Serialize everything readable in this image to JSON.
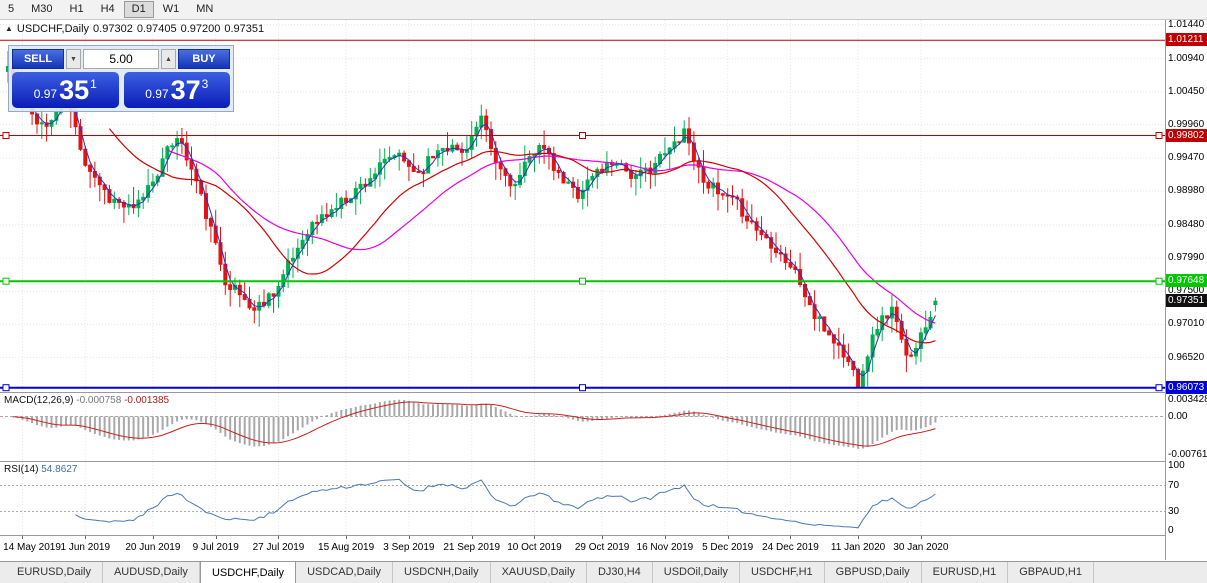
{
  "palette": {
    "up": "#00B050",
    "down": "#E01414",
    "ma_fast": "#2E2EC8",
    "ma_mid": "#D40000",
    "ma_slow": "#E800E8",
    "macd_hist": "#A8A8A8",
    "macd_signal": "#CC2020",
    "rsi_line": "#4A78B4",
    "grid": "#E6E6E6",
    "level_dash": "#AAAAAA"
  },
  "toolbar": {
    "timeframes": [
      {
        "label": "5",
        "active": false
      },
      {
        "label": "M30",
        "active": false
      },
      {
        "label": "H1",
        "active": false
      },
      {
        "label": "H4",
        "active": false
      },
      {
        "label": "D1",
        "active": true
      },
      {
        "label": "W1",
        "active": false
      },
      {
        "label": "MN",
        "active": false
      }
    ]
  },
  "chart": {
    "marker_icon": "▲",
    "symbol": "USDCHF,Daily",
    "open": "0.97302",
    "high": "0.97405",
    "low": "0.97200",
    "close": "0.97351",
    "price_top": 1.0151,
    "price_bottom": 0.9601,
    "y_ticks": [
      "1.01440",
      "1.00940",
      "1.00450",
      "0.99960",
      "0.99470",
      "0.98980",
      "0.98480",
      "0.97990",
      "0.97500",
      "0.97010",
      "0.96520"
    ],
    "hlines": [
      {
        "price": 1.01211,
        "label": "1.01211",
        "color": "#C00000",
        "width": 1,
        "handles": false
      },
      {
        "price": 0.99802,
        "label": "0.99802",
        "color": "#C00000",
        "width": 1,
        "handles": true
      },
      {
        "price": 0.97648,
        "label": "0.97648",
        "color": "#00C800",
        "width": 2,
        "handles": true
      },
      {
        "price": 0.96073,
        "label": "0.96073",
        "color": "#0000D8",
        "width": 2,
        "handles": true
      }
    ],
    "bid": {
      "price": 0.97351,
      "label": "0.97351",
      "bg": "#101010"
    },
    "trade_panel": {
      "sell_label": "SELL",
      "buy_label": "BUY",
      "volume": "5.00",
      "dropdown_icon": "▼",
      "spin_up_icon": "▲",
      "sell_price_prefix": "0.97",
      "sell_price_big": "35",
      "sell_price_sup": "1",
      "buy_price_prefix": "0.97",
      "buy_price_big": "37",
      "buy_price_sup": "3"
    }
  },
  "macd": {
    "name": "MACD(12,26,9)",
    "value1": "-0.000758",
    "value2": "-0.001385",
    "scale_top": "0.003428",
    "scale_zero": "0.00",
    "scale_bottom": "-0.00761",
    "vmax": 0.0045,
    "vmin": -0.0085
  },
  "rsi": {
    "name": "RSI(14)",
    "value": "54.8627",
    "scale": [
      "100",
      "70",
      "30",
      "0"
    ],
    "level_lines": [
      70,
      30
    ]
  },
  "date_axis": {
    "ticks": [
      {
        "label": "14 May 2019",
        "i": 3
      },
      {
        "label": "1 Jun 2019",
        "i": 16
      },
      {
        "label": "20 Jun 2019",
        "i": 30
      },
      {
        "label": "9 Jul 2019",
        "i": 43
      },
      {
        "label": "27 Jul 2019",
        "i": 56
      },
      {
        "label": "15 Aug 2019",
        "i": 70
      },
      {
        "label": "3 Sep 2019",
        "i": 83
      },
      {
        "label": "21 Sep 2019",
        "i": 96
      },
      {
        "label": "10 Oct 2019",
        "i": 109
      },
      {
        "label": "29 Oct 2019",
        "i": 123
      },
      {
        "label": "16 Nov 2019",
        "i": 136
      },
      {
        "label": "5 Dec 2019",
        "i": 149
      },
      {
        "label": "24 Dec 2019",
        "i": 162
      },
      {
        "label": "11 Jan 2020",
        "i": 176
      },
      {
        "label": "30 Jan 2020",
        "i": 189
      }
    ]
  },
  "tabs": {
    "active_index": 2,
    "items": [
      "EURUSD,Daily",
      "AUDUSD,Daily",
      "USDCHF,Daily",
      "USDCAD,Daily",
      "USDCNH,Daily",
      "XAUUSD,Daily",
      "DJ30,H4",
      "USDOil,Daily",
      "USDCHF,H1",
      "GBPUSD,Daily",
      "EURUSD,H1",
      "GBPAUD,H1"
    ]
  },
  "chart_data": {
    "type": "candlestick",
    "symbol": "USDCHF",
    "timeframe": "Daily",
    "count": 193,
    "seed": 11,
    "noise": 0.0018,
    "wick": 0.0026,
    "clamp_low": 0.9606,
    "clamp_high": 1.0139,
    "last_close": 0.97351,
    "ohlc_current": {
      "open": 0.97302,
      "high": 0.97405,
      "low": 0.972,
      "close": 0.97351
    },
    "anchors": [
      [
        0,
        1.0082
      ],
      [
        4,
        1.0018
      ],
      [
        8,
        0.9992
      ],
      [
        12,
        1.0038
      ],
      [
        16,
        0.9942
      ],
      [
        21,
        0.9888
      ],
      [
        26,
        0.9868
      ],
      [
        31,
        0.9928
      ],
      [
        35,
        0.9982
      ],
      [
        39,
        0.9912
      ],
      [
        45,
        0.9768
      ],
      [
        51,
        0.9722
      ],
      [
        56,
        0.9758
      ],
      [
        62,
        0.9842
      ],
      [
        68,
        0.9875
      ],
      [
        74,
        0.9912
      ],
      [
        80,
        0.9952
      ],
      [
        85,
        0.9925
      ],
      [
        90,
        0.9968
      ],
      [
        94,
        0.9955
      ],
      [
        98,
        1.0002
      ],
      [
        101,
        0.9938
      ],
      [
        105,
        0.9905
      ],
      [
        110,
        0.9972
      ],
      [
        114,
        0.9918
      ],
      [
        118,
        0.9895
      ],
      [
        122,
        0.9928
      ],
      [
        126,
        0.9945
      ],
      [
        130,
        0.9915
      ],
      [
        134,
        0.994
      ],
      [
        137,
        0.9958
      ],
      [
        140,
        0.999
      ],
      [
        143,
        0.9928
      ],
      [
        147,
        0.9892
      ],
      [
        151,
        0.9878
      ],
      [
        155,
        0.9842
      ],
      [
        159,
        0.9815
      ],
      [
        163,
        0.9778
      ],
      [
        167,
        0.9712
      ],
      [
        171,
        0.9678
      ],
      [
        174,
        0.9645
      ],
      [
        176,
        0.9618
      ],
      [
        180,
        0.97
      ],
      [
        183,
        0.9724
      ],
      [
        186,
        0.965
      ],
      [
        189,
        0.9684
      ],
      [
        192,
        0.97351
      ]
    ],
    "ma_periods": [
      3,
      22,
      34
    ],
    "macd_params": [
      12,
      26,
      9
    ],
    "rsi_period": 14,
    "x_start": 8,
    "x_step": 4.83,
    "body_width": 3
  }
}
